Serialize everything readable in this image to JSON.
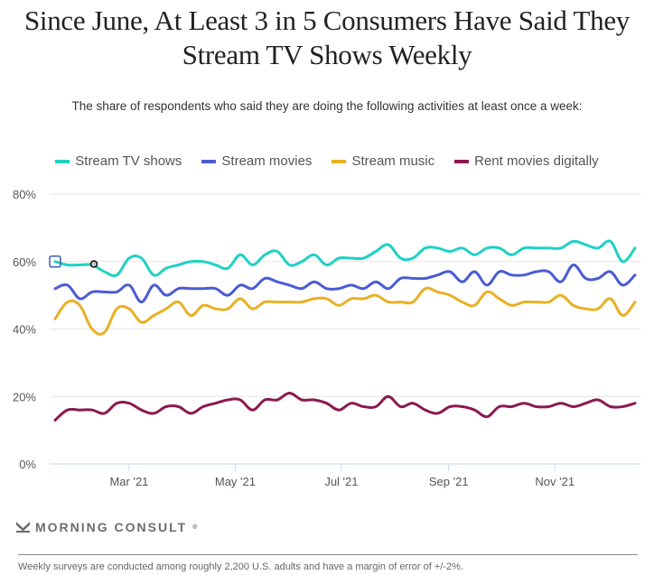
{
  "title": "Since June, At Least 3 in 5 Consumers Have Said They Stream TV Shows Weekly",
  "subtitle": "The share of respondents who said they are doing the following activities at least once a week:",
  "brand": "MORNING CONSULT",
  "brand_mark": "®",
  "footnote": "Weekly surveys are conducted among roughly 2,200 U.S. adults and have a margin of error of +/-2%.",
  "chart_data": {
    "type": "line",
    "title": "Since June, At Least 3 in 5 Consumers Have Said They Stream TV Shows Weekly",
    "subtitle": "The share of respondents who said they are doing the following activities at least once a week:",
    "xlabel": "",
    "ylabel": "",
    "ylim": [
      0,
      80
    ],
    "yticks": [
      0,
      20,
      40,
      60,
      80
    ],
    "ytick_labels": [
      "0%",
      "20%",
      "40%",
      "60%",
      "80%"
    ],
    "x_frequency": "weekly",
    "x_range_weeks": [
      0,
      47
    ],
    "xticks_week_index": [
      6,
      14.6,
      23.2,
      31.9,
      40.5
    ],
    "xtick_labels": [
      "Mar '21",
      "May '21",
      "Jul '21",
      "Sep '21",
      "Nov '21"
    ],
    "grid": true,
    "legend_position": "top-center",
    "series": [
      {
        "name": "Stream TV shows",
        "color": "#1fd1c4",
        "values": [
          60,
          59,
          59,
          59,
          57,
          56,
          61,
          61,
          56,
          58,
          59,
          60,
          60,
          59,
          58,
          62,
          59,
          62,
          63,
          59,
          60,
          62,
          59,
          61,
          61,
          61,
          63,
          65,
          61,
          61,
          64,
          64,
          63,
          64,
          62,
          64,
          64,
          62,
          64,
          64,
          64,
          64,
          66,
          65,
          64,
          66,
          60,
          64
        ]
      },
      {
        "name": "Stream movies",
        "color": "#4a5bd4",
        "values": [
          52,
          53,
          49,
          51,
          51,
          51,
          53,
          48,
          53,
          50,
          52,
          52,
          52,
          52,
          50,
          53,
          52,
          55,
          54,
          53,
          52,
          54,
          52,
          52,
          53,
          52,
          54,
          52,
          55,
          55,
          55,
          56,
          57,
          54,
          57,
          53,
          57,
          56,
          56,
          57,
          57,
          54,
          59,
          55,
          55,
          57,
          53,
          56
        ]
      },
      {
        "name": "Stream music",
        "color": "#e8b024",
        "values": [
          43,
          48,
          47,
          40,
          39,
          46,
          46,
          42,
          44,
          46,
          48,
          44,
          47,
          46,
          46,
          49,
          46,
          48,
          48,
          48,
          48,
          49,
          49,
          47,
          49,
          49,
          50,
          48,
          48,
          48,
          52,
          51,
          50,
          48,
          47,
          51,
          49,
          47,
          48,
          48,
          48,
          50,
          47,
          46,
          46,
          49,
          44,
          48
        ]
      },
      {
        "name": "Rent movies digitally",
        "color": "#8b1a50",
        "values": [
          13,
          16,
          16,
          16,
          15,
          18,
          18,
          16,
          15,
          17,
          17,
          15,
          17,
          18,
          19,
          19,
          16,
          19,
          19,
          21,
          19,
          19,
          18,
          16,
          18,
          17,
          17,
          20,
          17,
          18,
          16,
          15,
          17,
          17,
          16,
          14,
          17,
          17,
          18,
          17,
          17,
          18,
          17,
          18,
          19,
          17,
          17,
          18
        ]
      }
    ],
    "annotations": [
      {
        "type": "hover-marker-square",
        "series": "Stream TV shows",
        "week_index": 0
      },
      {
        "type": "hover-marker-circle",
        "series": "Stream TV shows",
        "week_index": 3
      }
    ]
  }
}
